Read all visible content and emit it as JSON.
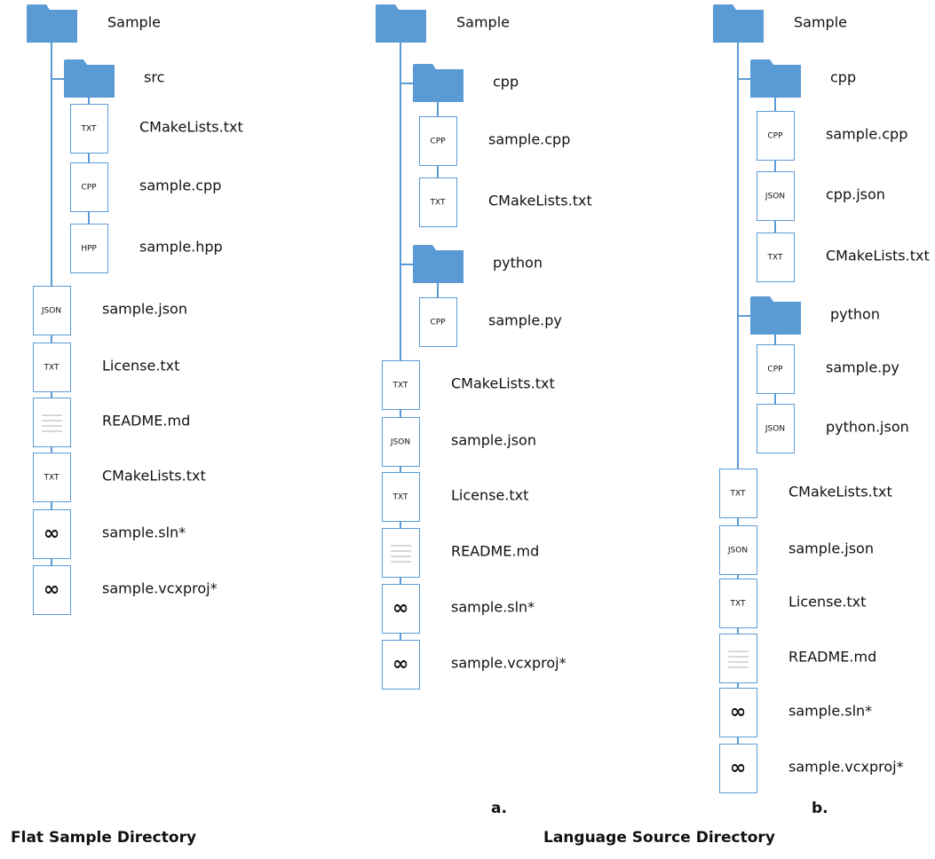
{
  "trees": [
    {
      "label": "Sample",
      "children": [
        {
          "label": "src",
          "children": [
            {
              "label": "CMakeLists.txt",
              "icon": "TXT"
            },
            {
              "label": "sample.cpp",
              "icon": "CPP"
            },
            {
              "label": "sample.hpp",
              "icon": "HPP"
            }
          ]
        },
        {
          "label": "sample.json",
          "icon": "JSON"
        },
        {
          "label": "License.txt",
          "icon": "TXT"
        },
        {
          "label": "README.md"
        },
        {
          "label": "CMakeLists.txt",
          "icon": "TXT"
        },
        {
          "label": "sample.sln*",
          "icon": "∞"
        },
        {
          "label": "sample.vcxproj*",
          "icon": "∞"
        }
      ]
    },
    {
      "label": "Sample",
      "children": [
        {
          "label": "cpp",
          "children": [
            {
              "label": "sample.cpp",
              "icon": "CPP"
            },
            {
              "label": "CMakeLists.txt",
              "icon": "TXT"
            }
          ]
        },
        {
          "label": "python",
          "children": [
            {
              "label": "sample.py",
              "icon": "CPP"
            }
          ]
        },
        {
          "label": "CMakeLists.txt",
          "icon": "TXT"
        },
        {
          "label": "sample.json",
          "icon": "JSON"
        },
        {
          "label": "License.txt",
          "icon": "TXT"
        },
        {
          "label": "README.md"
        },
        {
          "label": "sample.sln*",
          "icon": "∞"
        },
        {
          "label": "sample.vcxproj*",
          "icon": "∞"
        }
      ]
    },
    {
      "label": "Sample",
      "children": [
        {
          "label": "cpp",
          "children": [
            {
              "label": "sample.cpp",
              "icon": "CPP"
            },
            {
              "label": "cpp.json",
              "icon": "JSON"
            },
            {
              "label": "CMakeLists.txt",
              "icon": "TXT"
            }
          ]
        },
        {
          "label": "python",
          "children": [
            {
              "label": "sample.py",
              "icon": "CPP"
            },
            {
              "label": "python.json",
              "icon": "JSON"
            }
          ]
        },
        {
          "label": "CMakeLists.txt",
          "icon": "TXT"
        },
        {
          "label": "sample.json",
          "icon": "JSON"
        },
        {
          "label": "License.txt",
          "icon": "TXT"
        },
        {
          "label": "README.md"
        },
        {
          "label": "sample.sln*",
          "icon": "∞"
        },
        {
          "label": "sample.vcxproj*",
          "icon": "∞"
        }
      ]
    }
  ],
  "tree_labels": [
    "a.",
    "b."
  ],
  "titles": [
    "Flat Sample Directory",
    "Language Source Directory"
  ]
}
